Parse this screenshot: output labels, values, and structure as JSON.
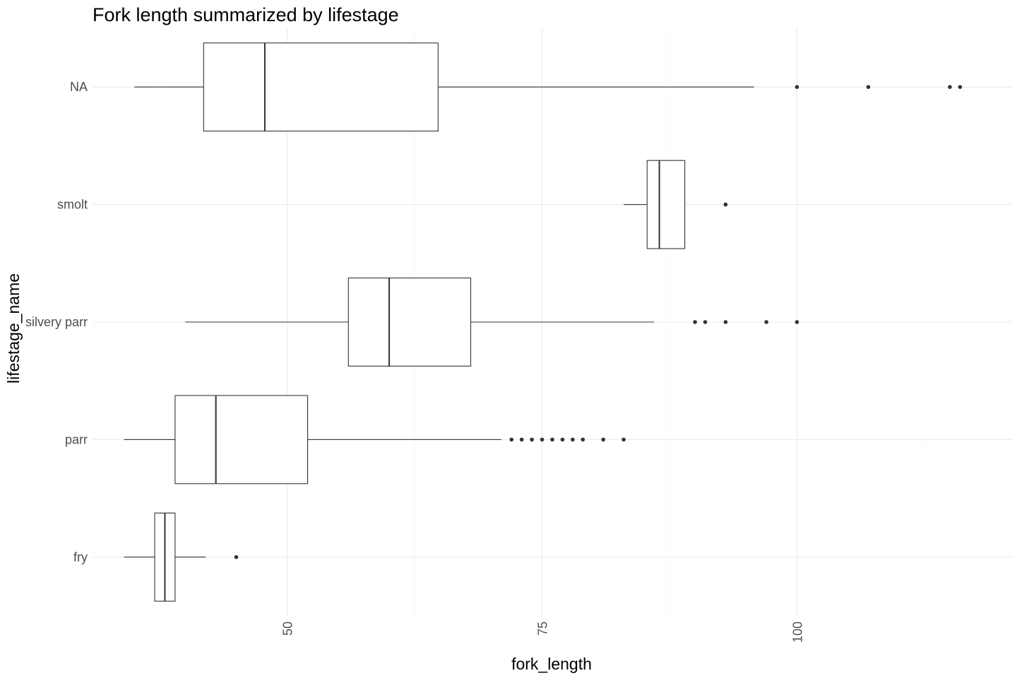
{
  "chart_data": {
    "type": "boxplot",
    "orientation": "horizontal",
    "title": "Fork length summarized by lifestage",
    "xlabel": "fork_length",
    "ylabel": "lifestage_name",
    "xlim": [
      30.9,
      121.1
    ],
    "x_ticks": [
      50,
      75,
      100
    ],
    "x_tick_labels": [
      "50",
      "75",
      "100"
    ],
    "x_minor_ticks": [
      37.5,
      62.5,
      87.5,
      112.5
    ],
    "grid": true,
    "legend": "none",
    "categories": [
      "NA",
      "smolt",
      "silvery parr",
      "parr",
      "fry"
    ],
    "boxes": [
      {
        "category": "NA",
        "whisker_low": 35,
        "q1": 41.8,
        "median": 47.8,
        "q3": 64.8,
        "whisker_high": 95.8,
        "outliers": [
          100,
          107,
          115,
          116
        ]
      },
      {
        "category": "smolt",
        "whisker_low": 83,
        "q1": 85.3,
        "median": 86.5,
        "q3": 89,
        "whisker_high": 89,
        "outliers": [
          93
        ]
      },
      {
        "category": "silvery parr",
        "whisker_low": 40,
        "q1": 56,
        "median": 60,
        "q3": 68,
        "whisker_high": 86,
        "outliers": [
          90,
          91,
          93,
          97,
          100
        ]
      },
      {
        "category": "parr",
        "whisker_low": 34,
        "q1": 39,
        "median": 43,
        "q3": 52,
        "whisker_high": 71,
        "outliers": [
          72,
          73,
          74,
          75,
          76,
          77,
          78,
          79,
          81,
          83
        ]
      },
      {
        "category": "fry",
        "whisker_low": 34,
        "q1": 37,
        "median": 38,
        "q3": 39,
        "whisker_high": 42,
        "outliers": [
          45
        ]
      }
    ]
  },
  "colors": {
    "background": "#ffffff",
    "grid": "#ebebeb",
    "box_stroke": "#333333",
    "tick_text": "#4d4d4d"
  }
}
